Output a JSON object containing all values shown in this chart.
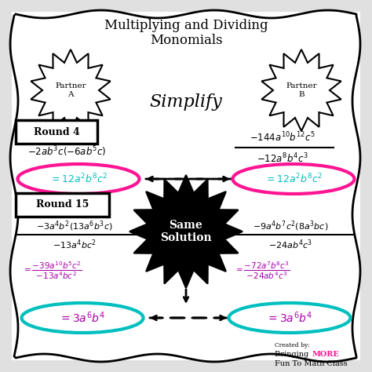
{
  "title": "Multiplying and Dividing\nMonomials",
  "simplify": "Simplify",
  "partner_a": "Partner\nA",
  "partner_b": "Partner\nB",
  "round4_label": "Round 4",
  "round15_label": "Round 15",
  "same_solution": "Same\nSolution",
  "created_by": "Created by:",
  "bringing": "Bringing",
  "more": "MORE",
  "fun": "Fun To Math Class",
  "bg_color": "#ffffff",
  "pink_color": "#FF1493",
  "cyan_color": "#00BFBF",
  "purple_color": "#AA00AA",
  "black_color": "#000000",
  "gray_color": "#555555"
}
